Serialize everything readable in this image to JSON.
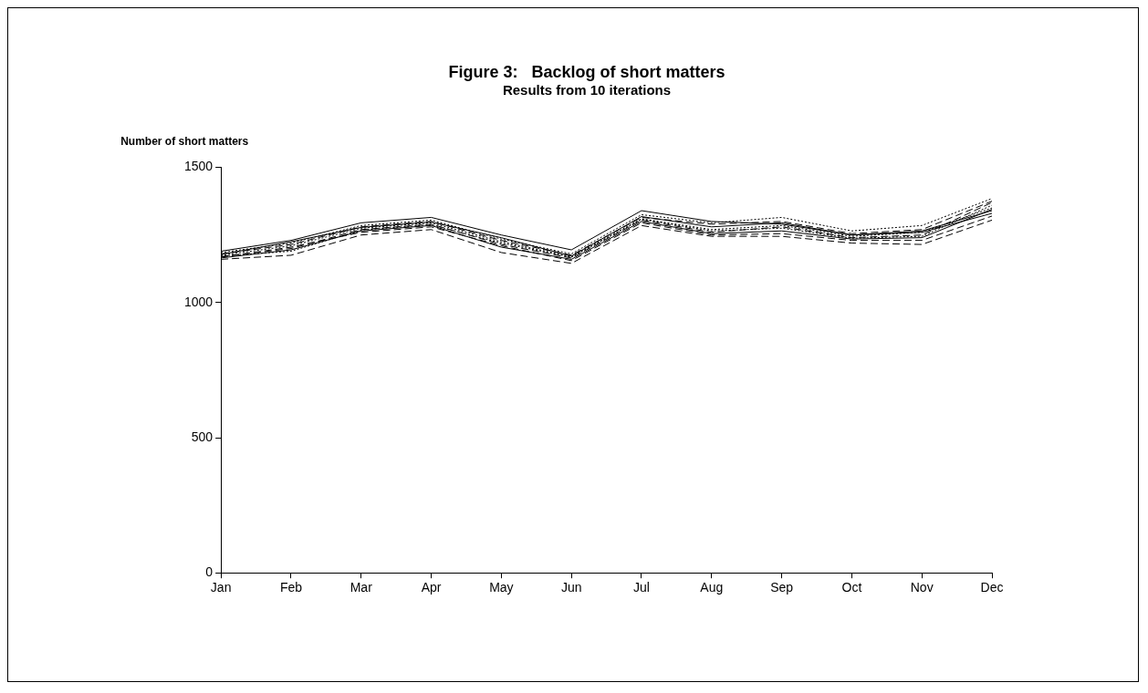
{
  "chart_data": {
    "type": "line",
    "title": "Figure 3:   Backlog of short matters",
    "subtitle": "Results from 10 iterations",
    "ylabel": "Number of short matters",
    "categories": [
      "Jan",
      "Feb",
      "Mar",
      "Apr",
      "May",
      "Jun",
      "Jul",
      "Aug",
      "Sep",
      "Oct",
      "Nov",
      "Dec"
    ],
    "ylim": [
      0,
      1500
    ],
    "yticks": [
      0,
      500,
      1000,
      1500
    ],
    "legend": false,
    "marker": "none",
    "series": [
      {
        "color": "#000000",
        "line_style": "solid",
        "values": [
          1190,
          1230,
          1295,
          1315,
          1250,
          1195,
          1340,
          1300,
          1290,
          1250,
          1260,
          1330
        ]
      },
      {
        "color": "#000000",
        "line_style": "dotted",
        "values": [
          1185,
          1220,
          1285,
          1305,
          1235,
          1180,
          1325,
          1295,
          1315,
          1265,
          1285,
          1385
        ]
      },
      {
        "color": "#000000",
        "line_style": "dashed",
        "values": [
          1160,
          1175,
          1250,
          1270,
          1185,
          1145,
          1285,
          1245,
          1245,
          1220,
          1215,
          1305
        ]
      },
      {
        "color": "#000000",
        "line_style": "dashed",
        "values": [
          1170,
          1200,
          1270,
          1290,
          1215,
          1165,
          1305,
          1260,
          1280,
          1240,
          1250,
          1370
        ]
      },
      {
        "color": "#000000",
        "line_style": "dotted",
        "values": [
          1175,
          1210,
          1275,
          1295,
          1225,
          1170,
          1310,
          1270,
          1285,
          1245,
          1260,
          1350
        ]
      },
      {
        "color": "#000000",
        "line_style": "solid",
        "values": [
          1165,
          1195,
          1265,
          1285,
          1205,
          1160,
          1300,
          1255,
          1265,
          1235,
          1240,
          1345
        ]
      },
      {
        "color": "#000000",
        "line_style": "dashed",
        "values": [
          1180,
          1215,
          1280,
          1300,
          1230,
          1175,
          1315,
          1290,
          1300,
          1255,
          1270,
          1375
        ]
      },
      {
        "color": "#000000",
        "line_style": "dashed",
        "values": [
          1168,
          1205,
          1260,
          1280,
          1210,
          1155,
          1295,
          1250,
          1255,
          1230,
          1230,
          1320
        ]
      },
      {
        "color": "#000000",
        "line_style": "dotted",
        "values": [
          1172,
          1190,
          1268,
          1288,
          1220,
          1168,
          1308,
          1265,
          1275,
          1238,
          1245,
          1360
        ]
      },
      {
        "color": "#000000",
        "line_style": "solid",
        "values": [
          1178,
          1225,
          1278,
          1298,
          1240,
          1172,
          1318,
          1280,
          1295,
          1250,
          1265,
          1340
        ]
      }
    ]
  }
}
